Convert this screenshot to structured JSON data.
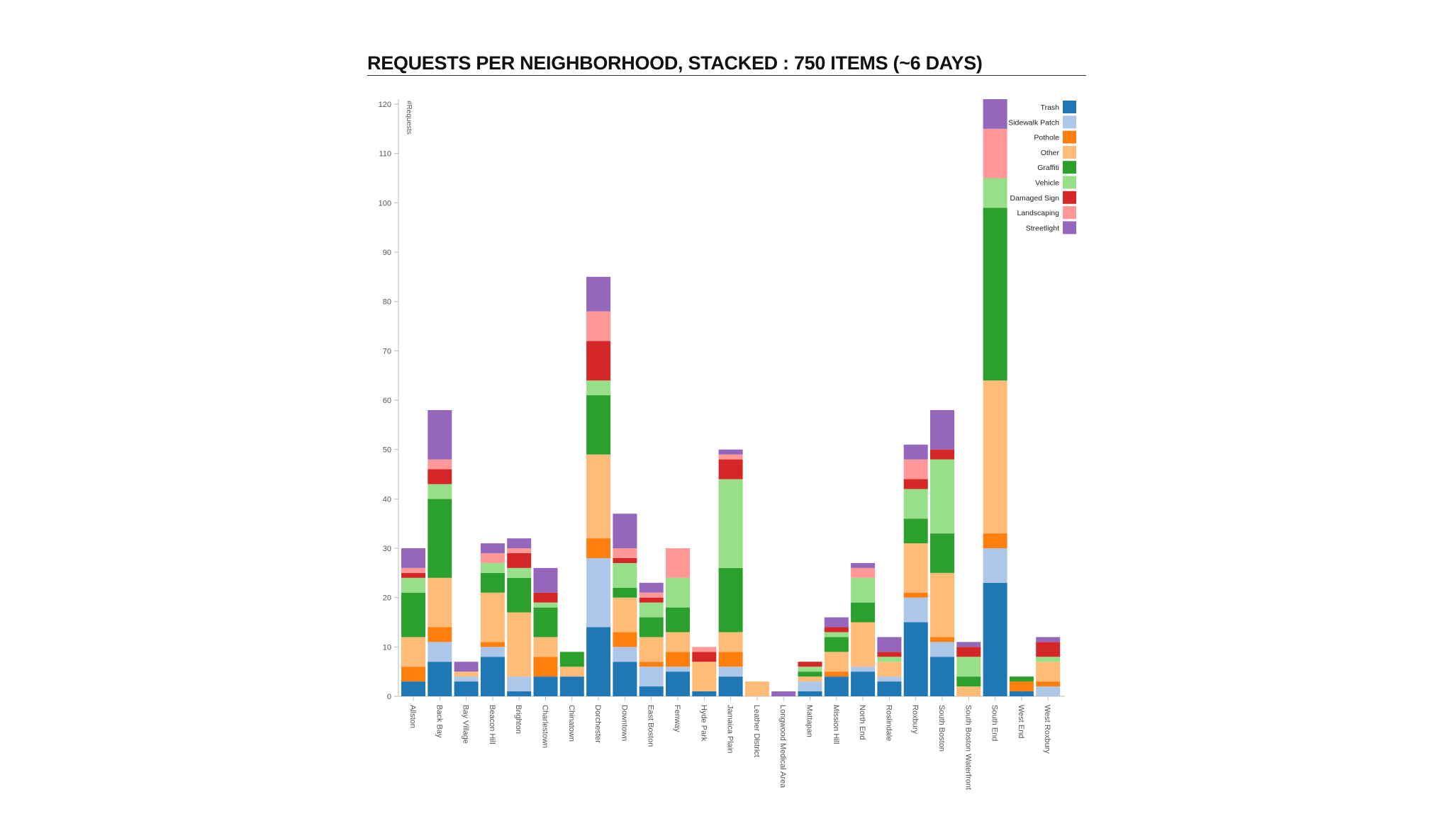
{
  "chart_data": {
    "type": "bar",
    "stacked": true,
    "title": "REQUESTS PER NEIGHBORHOOD, STACKED : 750 ITEMS (~6 DAYS)",
    "ylabel": "#Requests",
    "ylim": [
      0,
      120
    ],
    "yticks": [
      0,
      10,
      20,
      30,
      40,
      50,
      60,
      70,
      80,
      90,
      100,
      110,
      120
    ],
    "legend_position": "top-right",
    "categories": [
      "Allston",
      "Back Bay",
      "Bay Village",
      "Beacon Hill",
      "Brighton",
      "Charlestown",
      "Chinatown",
      "Dorchester",
      "Downtown",
      "East Boston",
      "Fenway",
      "Hyde Park",
      "Jamaica Plain",
      "Leather District",
      "Longwood Medical Area",
      "Mattapan",
      "Mission Hill",
      "North End",
      "Roslindale",
      "Roxbury",
      "South Boston",
      "South Boston Waterfront",
      "South End",
      "West End",
      "West Roxbury"
    ],
    "series": [
      {
        "name": "Trash",
        "color": "#1f77b4",
        "values": [
          3,
          7,
          3,
          8,
          1,
          4,
          4,
          14,
          7,
          2,
          5,
          1,
          4,
          0,
          0,
          1,
          4,
          5,
          3,
          15,
          8,
          0,
          23,
          1,
          0
        ]
      },
      {
        "name": "Sidewalk Patch",
        "color": "#aec7e8",
        "values": [
          0,
          4,
          1,
          2,
          3,
          0,
          0,
          14,
          3,
          4,
          1,
          0,
          2,
          0,
          0,
          2,
          0,
          1,
          1,
          5,
          3,
          0,
          7,
          0,
          2
        ]
      },
      {
        "name": "Pothole",
        "color": "#ff7f0e",
        "values": [
          3,
          3,
          0,
          1,
          0,
          4,
          0,
          4,
          3,
          1,
          3,
          0,
          3,
          0,
          0,
          0,
          1,
          0,
          0,
          1,
          1,
          0,
          3,
          2,
          1
        ]
      },
      {
        "name": "Other",
        "color": "#ffbb78",
        "values": [
          6,
          10,
          1,
          10,
          13,
          4,
          2,
          17,
          7,
          5,
          4,
          6,
          4,
          3,
          0,
          1,
          4,
          9,
          3,
          10,
          13,
          2,
          31,
          0,
          4
        ]
      },
      {
        "name": "Graffiti",
        "color": "#2ca02c",
        "values": [
          9,
          16,
          0,
          4,
          7,
          6,
          3,
          12,
          2,
          4,
          5,
          0,
          13,
          0,
          0,
          1,
          3,
          4,
          0,
          5,
          8,
          2,
          35,
          1,
          0
        ]
      },
      {
        "name": "Vehicle",
        "color": "#98df8a",
        "values": [
          3,
          3,
          0,
          2,
          2,
          1,
          0,
          3,
          5,
          3,
          6,
          0,
          18,
          0,
          0,
          1,
          1,
          5,
          1,
          6,
          15,
          4,
          6,
          0,
          1
        ]
      },
      {
        "name": "Damaged Sign",
        "color": "#d62728",
        "values": [
          1,
          3,
          0,
          0,
          3,
          2,
          0,
          8,
          1,
          1,
          0,
          2,
          4,
          0,
          0,
          1,
          1,
          0,
          1,
          2,
          2,
          2,
          0,
          0,
          3
        ]
      },
      {
        "name": "Landscaping",
        "color": "#ff9896",
        "values": [
          1,
          2,
          0,
          2,
          1,
          0,
          0,
          6,
          2,
          1,
          6,
          1,
          1,
          0,
          0,
          0,
          0,
          2,
          0,
          4,
          0,
          0,
          10,
          0,
          0
        ]
      },
      {
        "name": "Streetlight",
        "color": "#9467bd",
        "values": [
          4,
          10,
          2,
          2,
          2,
          5,
          0,
          7,
          7,
          2,
          0,
          0,
          1,
          0,
          1,
          0,
          2,
          1,
          3,
          3,
          8,
          1,
          6,
          0,
          1
        ]
      }
    ]
  }
}
